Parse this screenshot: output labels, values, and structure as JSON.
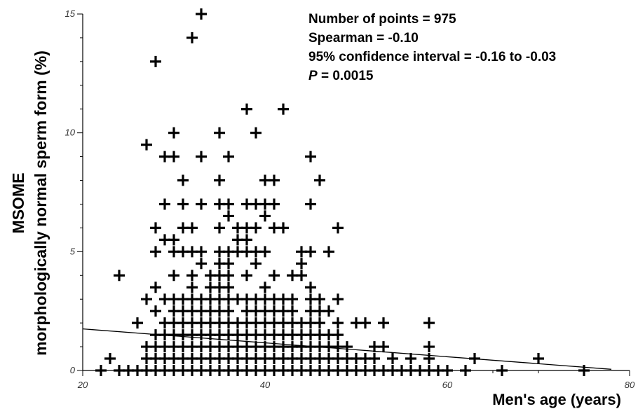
{
  "chart_data": {
    "type": "scatter",
    "xlabel": "Men's age (years)",
    "ylabel_line1": "MSOME",
    "ylabel_line2": "morphologically normal sperm form  (%)",
    "xlim": [
      20,
      80
    ],
    "ylim": [
      0,
      15
    ],
    "x_ticks": [
      20,
      40,
      60,
      80
    ],
    "y_ticks": [
      0,
      5,
      10,
      15
    ],
    "x_tick_labels": [
      "20",
      "40",
      "60",
      "80"
    ],
    "y_tick_labels": [
      "0",
      "5",
      "10",
      "15"
    ],
    "grid": false,
    "annotations": {
      "n_points": "Number of points = 975",
      "spearman": "Spearman =  -0.10",
      "ci": "95% confidence interval = -0.16 to -0.03",
      "p_letter": "P",
      "p_value": " = 0.0015"
    },
    "trend_line": [
      [
        20,
        1.75
      ],
      [
        78,
        0.05
      ]
    ],
    "points": [
      [
        33,
        15
      ],
      [
        32,
        14
      ],
      [
        28,
        13
      ],
      [
        38,
        11
      ],
      [
        42,
        11
      ],
      [
        30,
        10
      ],
      [
        35,
        10
      ],
      [
        39,
        10
      ],
      [
        27,
        9.5
      ],
      [
        29,
        9
      ],
      [
        30,
        9
      ],
      [
        33,
        9
      ],
      [
        36,
        9
      ],
      [
        45,
        9
      ],
      [
        31,
        8
      ],
      [
        35,
        8
      ],
      [
        40,
        8
      ],
      [
        41,
        8
      ],
      [
        46,
        8
      ],
      [
        29,
        7
      ],
      [
        31,
        7
      ],
      [
        33,
        7
      ],
      [
        35,
        7
      ],
      [
        36,
        7
      ],
      [
        38,
        7
      ],
      [
        39,
        7
      ],
      [
        40,
        7
      ],
      [
        41,
        7
      ],
      [
        45,
        7
      ],
      [
        36,
        6.5
      ],
      [
        40,
        6.5
      ],
      [
        28,
        6
      ],
      [
        31,
        6
      ],
      [
        32,
        6
      ],
      [
        35,
        6
      ],
      [
        37,
        6
      ],
      [
        38,
        6
      ],
      [
        39,
        6
      ],
      [
        41,
        6
      ],
      [
        42,
        6
      ],
      [
        48,
        6
      ],
      [
        29,
        5.5
      ],
      [
        30,
        5.5
      ],
      [
        37,
        5.5
      ],
      [
        38,
        5.5
      ],
      [
        28,
        5
      ],
      [
        30,
        5
      ],
      [
        31,
        5
      ],
      [
        32,
        5
      ],
      [
        33,
        5
      ],
      [
        35,
        5
      ],
      [
        36,
        5
      ],
      [
        37,
        5
      ],
      [
        38,
        5
      ],
      [
        39,
        5
      ],
      [
        40,
        5
      ],
      [
        44,
        5
      ],
      [
        45,
        5
      ],
      [
        47,
        5
      ],
      [
        33,
        4.5
      ],
      [
        35,
        4.5
      ],
      [
        36,
        4.5
      ],
      [
        39,
        4.5
      ],
      [
        44,
        4.5
      ],
      [
        24,
        4
      ],
      [
        30,
        4
      ],
      [
        32,
        4
      ],
      [
        34,
        4
      ],
      [
        35,
        4
      ],
      [
        36,
        4
      ],
      [
        38,
        4
      ],
      [
        41,
        4
      ],
      [
        43,
        4
      ],
      [
        44,
        4
      ],
      [
        28,
        3.5
      ],
      [
        32,
        3.5
      ],
      [
        34,
        3.5
      ],
      [
        35,
        3.5
      ],
      [
        36,
        3.5
      ],
      [
        40,
        3.5
      ],
      [
        45,
        3.5
      ],
      [
        27,
        3
      ],
      [
        29,
        3
      ],
      [
        30,
        3
      ],
      [
        31,
        3
      ],
      [
        32,
        3
      ],
      [
        33,
        3
      ],
      [
        34,
        3
      ],
      [
        35,
        3
      ],
      [
        36,
        3
      ],
      [
        37,
        3
      ],
      [
        38,
        3
      ],
      [
        39,
        3
      ],
      [
        40,
        3
      ],
      [
        41,
        3
      ],
      [
        42,
        3
      ],
      [
        43,
        3
      ],
      [
        45,
        3
      ],
      [
        46,
        3
      ],
      [
        48,
        3
      ],
      [
        28,
        2.5
      ],
      [
        30,
        2.5
      ],
      [
        31,
        2.5
      ],
      [
        32,
        2.5
      ],
      [
        33,
        2.5
      ],
      [
        34,
        2.5
      ],
      [
        35,
        2.5
      ],
      [
        36,
        2.5
      ],
      [
        38,
        2.5
      ],
      [
        39,
        2.5
      ],
      [
        40,
        2.5
      ],
      [
        41,
        2.5
      ],
      [
        42,
        2.5
      ],
      [
        43,
        2.5
      ],
      [
        45,
        2.5
      ],
      [
        46,
        2.5
      ],
      [
        47,
        2.5
      ],
      [
        26,
        2
      ],
      [
        29,
        2
      ],
      [
        30,
        2
      ],
      [
        31,
        2
      ],
      [
        32,
        2
      ],
      [
        33,
        2
      ],
      [
        34,
        2
      ],
      [
        35,
        2
      ],
      [
        36,
        2
      ],
      [
        37,
        2
      ],
      [
        38,
        2
      ],
      [
        39,
        2
      ],
      [
        40,
        2
      ],
      [
        41,
        2
      ],
      [
        42,
        2
      ],
      [
        43,
        2
      ],
      [
        44,
        2
      ],
      [
        45,
        2
      ],
      [
        46,
        2
      ],
      [
        48,
        2
      ],
      [
        50,
        2
      ],
      [
        51,
        2
      ],
      [
        53,
        2
      ],
      [
        58,
        2
      ],
      [
        28,
        1.5
      ],
      [
        29,
        1.5
      ],
      [
        30,
        1.5
      ],
      [
        31,
        1.5
      ],
      [
        32,
        1.5
      ],
      [
        33,
        1.5
      ],
      [
        34,
        1.5
      ],
      [
        35,
        1.5
      ],
      [
        36,
        1.5
      ],
      [
        37,
        1.5
      ],
      [
        38,
        1.5
      ],
      [
        39,
        1.5
      ],
      [
        40,
        1.5
      ],
      [
        41,
        1.5
      ],
      [
        42,
        1.5
      ],
      [
        43,
        1.5
      ],
      [
        44,
        1.5
      ],
      [
        45,
        1.5
      ],
      [
        46,
        1.5
      ],
      [
        47,
        1.5
      ],
      [
        48,
        1.5
      ],
      [
        27,
        1
      ],
      [
        28,
        1
      ],
      [
        29,
        1
      ],
      [
        30,
        1
      ],
      [
        31,
        1
      ],
      [
        32,
        1
      ],
      [
        33,
        1
      ],
      [
        34,
        1
      ],
      [
        35,
        1
      ],
      [
        36,
        1
      ],
      [
        37,
        1
      ],
      [
        38,
        1
      ],
      [
        39,
        1
      ],
      [
        40,
        1
      ],
      [
        41,
        1
      ],
      [
        42,
        1
      ],
      [
        43,
        1
      ],
      [
        44,
        1
      ],
      [
        45,
        1
      ],
      [
        46,
        1
      ],
      [
        47,
        1
      ],
      [
        48,
        1
      ],
      [
        49,
        1
      ],
      [
        52,
        1
      ],
      [
        53,
        1
      ],
      [
        58,
        1
      ],
      [
        23,
        0.5
      ],
      [
        27,
        0.5
      ],
      [
        28,
        0.5
      ],
      [
        29,
        0.5
      ],
      [
        30,
        0.5
      ],
      [
        31,
        0.5
      ],
      [
        32,
        0.5
      ],
      [
        33,
        0.5
      ],
      [
        34,
        0.5
      ],
      [
        35,
        0.5
      ],
      [
        36,
        0.5
      ],
      [
        37,
        0.5
      ],
      [
        38,
        0.5
      ],
      [
        39,
        0.5
      ],
      [
        40,
        0.5
      ],
      [
        41,
        0.5
      ],
      [
        42,
        0.5
      ],
      [
        43,
        0.5
      ],
      [
        44,
        0.5
      ],
      [
        45,
        0.5
      ],
      [
        46,
        0.5
      ],
      [
        47,
        0.5
      ],
      [
        48,
        0.5
      ],
      [
        49,
        0.5
      ],
      [
        50,
        0.5
      ],
      [
        51,
        0.5
      ],
      [
        52,
        0.5
      ],
      [
        54,
        0.5
      ],
      [
        56,
        0.5
      ],
      [
        58,
        0.5
      ],
      [
        63,
        0.5
      ],
      [
        70,
        0.5
      ],
      [
        22,
        0
      ],
      [
        24,
        0
      ],
      [
        25,
        0
      ],
      [
        26,
        0
      ],
      [
        27,
        0
      ],
      [
        28,
        0
      ],
      [
        29,
        0
      ],
      [
        30,
        0
      ],
      [
        31,
        0
      ],
      [
        32,
        0
      ],
      [
        33,
        0
      ],
      [
        34,
        0
      ],
      [
        35,
        0
      ],
      [
        36,
        0
      ],
      [
        37,
        0
      ],
      [
        38,
        0
      ],
      [
        39,
        0
      ],
      [
        40,
        0
      ],
      [
        41,
        0
      ],
      [
        42,
        0
      ],
      [
        43,
        0
      ],
      [
        44,
        0
      ],
      [
        45,
        0
      ],
      [
        46,
        0
      ],
      [
        47,
        0
      ],
      [
        48,
        0
      ],
      [
        49,
        0
      ],
      [
        50,
        0
      ],
      [
        51,
        0
      ],
      [
        52,
        0
      ],
      [
        53,
        0
      ],
      [
        54,
        0
      ],
      [
        55,
        0
      ],
      [
        56,
        0
      ],
      [
        57,
        0
      ],
      [
        58,
        0
      ],
      [
        59,
        0
      ],
      [
        60,
        0
      ],
      [
        62,
        0
      ],
      [
        66,
        0
      ],
      [
        75,
        0
      ]
    ]
  }
}
